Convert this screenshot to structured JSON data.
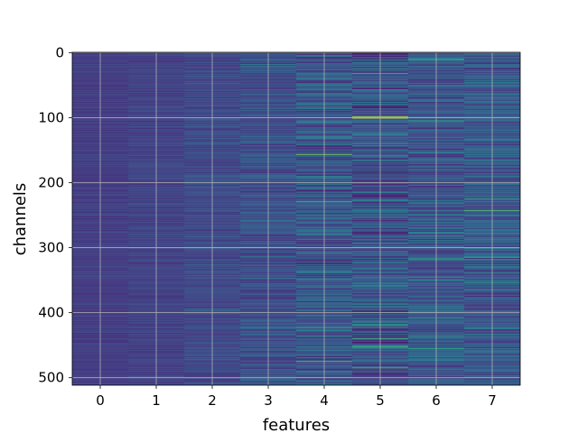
{
  "chart_data": {
    "type": "heatmap",
    "title": "",
    "xlabel": "features",
    "ylabel": "channels",
    "columns": 8,
    "rows": 512,
    "x_ticks": [
      "0",
      "1",
      "2",
      "3",
      "4",
      "5",
      "6",
      "7"
    ],
    "y_ticks": [
      "0",
      "100",
      "200",
      "300",
      "400",
      "500"
    ],
    "y_tick_values": [
      0,
      100,
      200,
      300,
      400,
      500
    ],
    "xlim": [
      -0.5,
      7.5
    ],
    "ylim": [
      511.5,
      -0.5
    ],
    "grid": true,
    "colormap": "viridis",
    "column_mean_level": [
      0.22,
      0.24,
      0.27,
      0.3,
      0.33,
      0.32,
      0.33,
      0.34
    ],
    "column_spread": [
      0.04,
      0.05,
      0.08,
      0.12,
      0.2,
      0.22,
      0.18,
      0.18
    ],
    "highlights": [
      {
        "column": 4,
        "row": 157,
        "level": 0.85
      },
      {
        "column": 4,
        "row": 475,
        "level": 0.8
      },
      {
        "column": 4,
        "row": 106,
        "level": 0.65
      },
      {
        "column": 4,
        "row": 80,
        "level": 0.6
      },
      {
        "column": 4,
        "row": 337,
        "level": 0.55
      },
      {
        "column": 5,
        "row": 99,
        "level": 0.95
      },
      {
        "column": 5,
        "row": 101,
        "level": 0.9
      },
      {
        "column": 5,
        "row": 420,
        "level": 0.75
      },
      {
        "column": 5,
        "row": 28,
        "level": 0.6
      },
      {
        "column": 5,
        "row": 243,
        "level": 0.55
      },
      {
        "column": 6,
        "row": 112,
        "level": 0.6
      },
      {
        "column": 6,
        "row": 228,
        "level": 0.6
      },
      {
        "column": 6,
        "row": 282,
        "level": 0.6
      },
      {
        "column": 6,
        "row": 350,
        "level": 0.55
      },
      {
        "column": 7,
        "row": 243,
        "level": 0.8
      },
      {
        "column": 7,
        "row": 225,
        "level": 0.7
      },
      {
        "column": 7,
        "row": 315,
        "level": 0.7
      },
      {
        "column": 7,
        "row": 398,
        "level": 0.65
      },
      {
        "column": 7,
        "row": 1,
        "level": 0.6
      },
      {
        "column": 2,
        "row": 48,
        "level": 0.5
      },
      {
        "column": 3,
        "row": 18,
        "level": 0.6
      },
      {
        "column": 3,
        "row": 258,
        "level": 0.5
      },
      {
        "column": 1,
        "row": 400,
        "level": 0.45
      },
      {
        "column": 0,
        "row": 85,
        "level": 0.35
      }
    ]
  }
}
